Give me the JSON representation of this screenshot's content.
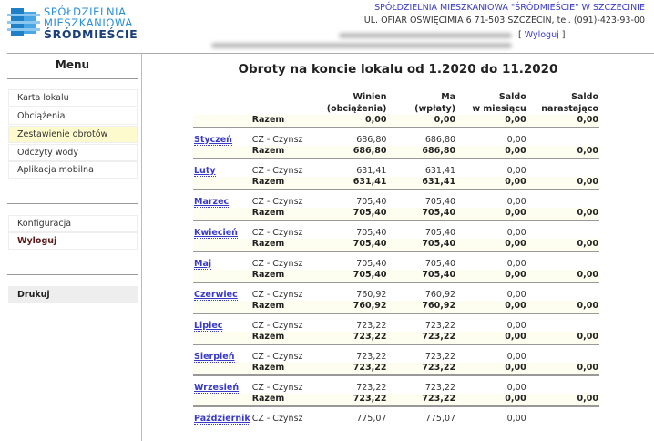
{
  "logo": {
    "line1": "SPÓŁDZIELNIA",
    "line2": "MIESZKANIOWA",
    "line3": "ŚRÓDMIEŚCIE",
    "color": "#2a8fd6"
  },
  "header": {
    "org": "SPÓŁDZIELNIA MIESZKANIOWA \"ŚRÓDMIEŚCIE\" W SZCZECINIE",
    "address": "UL. OFIAR OŚWIĘCIMIA 6 71-503 SZCZECIN, tel. (091)-423-93-00",
    "logout_open": "[ ",
    "logout": "Wyloguj",
    "logout_close": " ]"
  },
  "sidebar": {
    "title": "Menu",
    "items": [
      {
        "label": "Karta lokalu"
      },
      {
        "label": "Obciążenia"
      },
      {
        "label": "Zestawienie obrotów",
        "selected": true
      },
      {
        "label": "Odczyty wody"
      },
      {
        "label": "Aplikacja mobilna"
      }
    ],
    "items2": [
      {
        "label": "Konfiguracja"
      },
      {
        "label": "Wyloguj"
      }
    ],
    "print": "Drukuj"
  },
  "main": {
    "title": "Obroty na koncie lokalu od 1.2020 do 11.2020",
    "columns": {
      "winien": "Winien",
      "winien_sub": "(obciążenia)",
      "ma": "Ma",
      "ma_sub": "(wpłaty)",
      "saldo": "Saldo",
      "saldo_sub": "w miesiącu",
      "nar": "Saldo",
      "nar_sub": "narastająco"
    },
    "opening": {
      "label": "Razem",
      "winien": "0,00",
      "ma": "0,00",
      "saldo": "0,00",
      "nar": "0,00"
    },
    "months": [
      {
        "name": "Styczeń",
        "desc": "CZ - Czynsz",
        "winien": "686,80",
        "ma": "686,80",
        "saldo": "0,00",
        "sum_label": "Razem",
        "sum_winien": "686,80",
        "sum_ma": "686,80",
        "sum_saldo": "0,00",
        "sum_nar": "0,00"
      },
      {
        "name": "Luty",
        "desc": "CZ - Czynsz",
        "winien": "631,41",
        "ma": "631,41",
        "saldo": "0,00",
        "sum_label": "Razem",
        "sum_winien": "631,41",
        "sum_ma": "631,41",
        "sum_saldo": "0,00",
        "sum_nar": "0,00"
      },
      {
        "name": "Marzec",
        "desc": "CZ - Czynsz",
        "winien": "705,40",
        "ma": "705,40",
        "saldo": "0,00",
        "sum_label": "Razem",
        "sum_winien": "705,40",
        "sum_ma": "705,40",
        "sum_saldo": "0,00",
        "sum_nar": "0,00"
      },
      {
        "name": "Kwiecień",
        "desc": "CZ - Czynsz",
        "winien": "705,40",
        "ma": "705,40",
        "saldo": "0,00",
        "sum_label": "Razem",
        "sum_winien": "705,40",
        "sum_ma": "705,40",
        "sum_saldo": "0,00",
        "sum_nar": "0,00"
      },
      {
        "name": "Maj",
        "desc": "CZ - Czynsz",
        "winien": "705,40",
        "ma": "705,40",
        "saldo": "0,00",
        "sum_label": "Razem",
        "sum_winien": "705,40",
        "sum_ma": "705,40",
        "sum_saldo": "0,00",
        "sum_nar": "0,00"
      },
      {
        "name": "Czerwiec",
        "desc": "CZ - Czynsz",
        "winien": "760,92",
        "ma": "760,92",
        "saldo": "0,00",
        "sum_label": "Razem",
        "sum_winien": "760,92",
        "sum_ma": "760,92",
        "sum_saldo": "0,00",
        "sum_nar": "0,00"
      },
      {
        "name": "Lipiec",
        "desc": "CZ - Czynsz",
        "winien": "723,22",
        "ma": "723,22",
        "saldo": "0,00",
        "sum_label": "Razem",
        "sum_winien": "723,22",
        "sum_ma": "723,22",
        "sum_saldo": "0,00",
        "sum_nar": "0,00"
      },
      {
        "name": "Sierpień",
        "desc": "CZ - Czynsz",
        "winien": "723,22",
        "ma": "723,22",
        "saldo": "0,00",
        "sum_label": "Razem",
        "sum_winien": "723,22",
        "sum_ma": "723,22",
        "sum_saldo": "0,00",
        "sum_nar": "0,00"
      },
      {
        "name": "Wrzesień",
        "desc": "CZ - Czynsz",
        "winien": "723,22",
        "ma": "723,22",
        "saldo": "0,00",
        "sum_label": "Razem",
        "sum_winien": "723,22",
        "sum_ma": "723,22",
        "sum_saldo": "0,00",
        "sum_nar": "0,00"
      },
      {
        "name": "Październik",
        "desc": "CZ - Czynsz",
        "winien": "775,07",
        "ma": "775,07",
        "saldo": "0,00"
      }
    ]
  }
}
